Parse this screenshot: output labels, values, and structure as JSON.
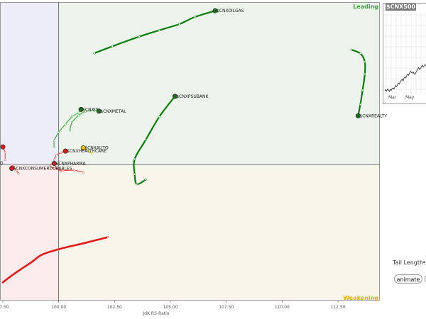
{
  "chart_data": {
    "type": "scatter",
    "subtype": "relative-rotation-graph",
    "xlabel": "JdK RS-Ratio",
    "ylabel": "",
    "xlim": [
      97.5,
      114.5
    ],
    "ylim": [
      94.5,
      106.6
    ],
    "center": [
      100,
      100
    ],
    "x_ticks": [
      "97.50",
      "100.00",
      "102.50",
      "105.00",
      "107.50",
      "110.00",
      "112.50"
    ],
    "x_tick_values": [
      97.5,
      100,
      102.5,
      105,
      107.5,
      110,
      112.5
    ],
    "quadrants": {
      "leading": {
        "label": "Leading",
        "color": "#3aa63a",
        "fill": "#ecf3ea"
      },
      "weakening": {
        "label": "Weakening",
        "color": "#e0b000",
        "fill": "#f8f5ea"
      },
      "lagging": {
        "fill": "#fbecec"
      },
      "improving": {
        "fill": "#ecedf8"
      }
    },
    "series": [
      {
        "name": "$CNXOILGAS",
        "color": "#0a7d0a",
        "head_color": "#1d6b1d",
        "width": 2.2,
        "points": [
          [
            101.6,
            104.53
          ],
          [
            102.4,
            104.81
          ],
          [
            103.6,
            105.2
          ],
          [
            104.5,
            105.46
          ],
          [
            105.4,
            105.71
          ],
          [
            106.1,
            106.0
          ],
          [
            107.0,
            106.25
          ]
        ]
      },
      {
        "name": "$CNXREALTY",
        "color": "#0a7d0a",
        "head_color": "#1d6b1d",
        "width": 2.2,
        "points": [
          [
            113.1,
            104.67
          ],
          [
            113.5,
            104.52
          ],
          [
            113.7,
            104.18
          ],
          [
            113.7,
            103.68
          ],
          [
            113.6,
            103.03
          ],
          [
            113.5,
            102.45
          ],
          [
            113.4,
            101.99
          ]
        ]
      },
      {
        "name": "$CNXPSUBANK",
        "color": "#0a7d0a",
        "head_color": "#1d6b1d",
        "width": 2.2,
        "points": [
          [
            103.9,
            99.41
          ],
          [
            103.5,
            99.22
          ],
          [
            103.4,
            99.62
          ],
          [
            103.4,
            100.24
          ],
          [
            103.9,
            101.02
          ],
          [
            104.5,
            101.95
          ],
          [
            105.2,
            102.78
          ]
        ]
      },
      {
        "name": "$CNXIT",
        "color": "#3aa63a",
        "head_color": "#1d6b1d",
        "width": 1.1,
        "points": [
          [
            99.8,
            100.72
          ],
          [
            99.8,
            100.98
          ],
          [
            100.0,
            101.32
          ],
          [
            100.3,
            101.65
          ],
          [
            100.6,
            101.96
          ],
          [
            100.9,
            102.12
          ],
          [
            101.0,
            102.25
          ]
        ]
      },
      {
        "name": "$CNXMETAL",
        "color": "#3aa63a",
        "head_color": "#1d6b1d",
        "width": 1.1,
        "points": [
          [
            100.5,
            101.4
          ],
          [
            100.6,
            101.73
          ],
          [
            100.9,
            102.01
          ],
          [
            101.2,
            102.17
          ],
          [
            101.6,
            102.2
          ],
          [
            101.8,
            102.18
          ]
        ]
      },
      {
        "name": "$CNXAUTO",
        "color": "#e0c000",
        "head_color": "#e6c619",
        "width": 1.1,
        "points": [
          [
            101.5,
            100.45
          ],
          [
            101.3,
            100.58
          ],
          [
            101.1,
            100.69
          ]
        ]
      },
      {
        "name": "$CNXHEALTHCARE",
        "color": "#e64545",
        "head_color": "#cc2222",
        "width": 1.1,
        "points": [
          [
            100.1,
            99.73
          ],
          [
            99.9,
            99.89
          ],
          [
            99.8,
            100.06
          ],
          [
            99.8,
            100.21
          ],
          [
            99.9,
            100.4
          ],
          [
            100.1,
            100.49
          ],
          [
            100.3,
            100.56
          ]
        ]
      },
      {
        "name": "$CNXPHARMA",
        "color": "#e64545",
        "head_color": "#cc2222",
        "width": 1.1,
        "points": [
          [
            101.1,
            99.7
          ],
          [
            100.7,
            99.78
          ],
          [
            100.2,
            99.78
          ],
          [
            99.8,
            99.86
          ],
          [
            99.6,
            99.96
          ],
          [
            99.7,
            100.05
          ],
          [
            99.8,
            100.06
          ]
        ]
      },
      {
        "name": "$CNXCONSUMERDURABLES",
        "color": "#e64545",
        "head_color": "#cc2222",
        "width": 1.1,
        "points": [
          [
            98.2,
            99.65
          ],
          [
            98.1,
            99.79
          ],
          [
            98.0,
            99.91
          ],
          [
            97.9,
            100.01
          ],
          [
            97.9,
            99.86
          ]
        ]
      },
      {
        "name": "",
        "color": "#e64545",
        "head_color": "#cc2222",
        "width": 1.1,
        "points": [
          [
            97.6,
            100.21
          ],
          [
            97.6,
            100.51
          ],
          [
            97.5,
            100.73
          ]
        ]
      },
      {
        "name": "",
        "color": "#e61a1a",
        "head_color": "#cc2222",
        "width": 2.6,
        "no_head": true,
        "points": [
          [
            97.5,
            95.24
          ],
          [
            98.0,
            95.58
          ],
          [
            98.8,
            96.07
          ],
          [
            99.3,
            96.38
          ],
          [
            100.2,
            96.63
          ],
          [
            101.1,
            96.82
          ],
          [
            102.2,
            97.07
          ]
        ]
      }
    ]
  },
  "extra_labels": {
    "left_edge_label": "G"
  },
  "benchmark": {
    "title": "$CNX500",
    "months": [
      "Mar",
      "May"
    ],
    "values": [
      22,
      25,
      21,
      27,
      24,
      20,
      26,
      23,
      28,
      30,
      27,
      33,
      37,
      34,
      40,
      44,
      41,
      48,
      52,
      55,
      50,
      58,
      62,
      59,
      65,
      70,
      66,
      73,
      78,
      74,
      72,
      76,
      71,
      69,
      74,
      79,
      84,
      88,
      83,
      86,
      91,
      95,
      90,
      93,
      97,
      94
    ]
  },
  "controls": {
    "tail_length_label": "Tail Length:",
    "animate_label": "animate"
  }
}
